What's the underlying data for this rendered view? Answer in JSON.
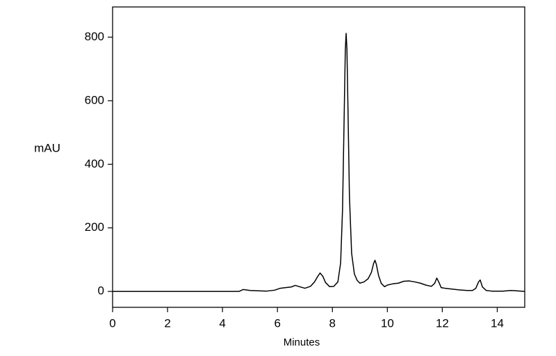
{
  "chart_data": {
    "type": "line",
    "xlabel": "Minutes",
    "ylabel": "mAU",
    "x": [
      0,
      1,
      2,
      3,
      4,
      4.6,
      4.75,
      4.85,
      5.0,
      5.3,
      5.6,
      5.9,
      6.1,
      6.3,
      6.5,
      6.65,
      6.8,
      7.0,
      7.2,
      7.35,
      7.45,
      7.55,
      7.65,
      7.75,
      7.9,
      8.05,
      8.2,
      8.3,
      8.37,
      8.43,
      8.47,
      8.5,
      8.53,
      8.57,
      8.62,
      8.7,
      8.8,
      8.9,
      9.0,
      9.15,
      9.3,
      9.42,
      9.5,
      9.55,
      9.6,
      9.68,
      9.78,
      9.9,
      10.0,
      10.2,
      10.4,
      10.6,
      10.8,
      11.0,
      11.2,
      11.4,
      11.6,
      11.72,
      11.8,
      11.88,
      11.96,
      12.1,
      12.3,
      12.6,
      12.9,
      13.1,
      13.22,
      13.32,
      13.38,
      13.46,
      13.6,
      13.8,
      14.2,
      14.5,
      14.7,
      15
    ],
    "values": [
      0,
      0,
      0,
      0,
      0,
      0,
      6,
      5,
      3,
      2,
      1,
      4,
      10,
      12,
      14,
      19,
      15,
      10,
      16,
      30,
      45,
      58,
      48,
      28,
      15,
      16,
      30,
      90,
      260,
      560,
      760,
      812,
      760,
      560,
      300,
      120,
      55,
      35,
      26,
      30,
      40,
      60,
      88,
      98,
      85,
      50,
      25,
      15,
      20,
      24,
      26,
      32,
      33,
      30,
      26,
      20,
      16,
      25,
      42,
      28,
      12,
      10,
      8,
      5,
      3,
      3,
      10,
      30,
      36,
      14,
      3,
      1,
      1,
      3,
      2,
      0
    ],
    "color": "#000000",
    "xlim": [
      0,
      15
    ],
    "ylim": [
      -50,
      895
    ],
    "xticks": [
      0,
      2,
      4,
      6,
      8,
      10,
      12,
      14
    ],
    "yticks": [
      0,
      200,
      400,
      600,
      800
    ]
  }
}
